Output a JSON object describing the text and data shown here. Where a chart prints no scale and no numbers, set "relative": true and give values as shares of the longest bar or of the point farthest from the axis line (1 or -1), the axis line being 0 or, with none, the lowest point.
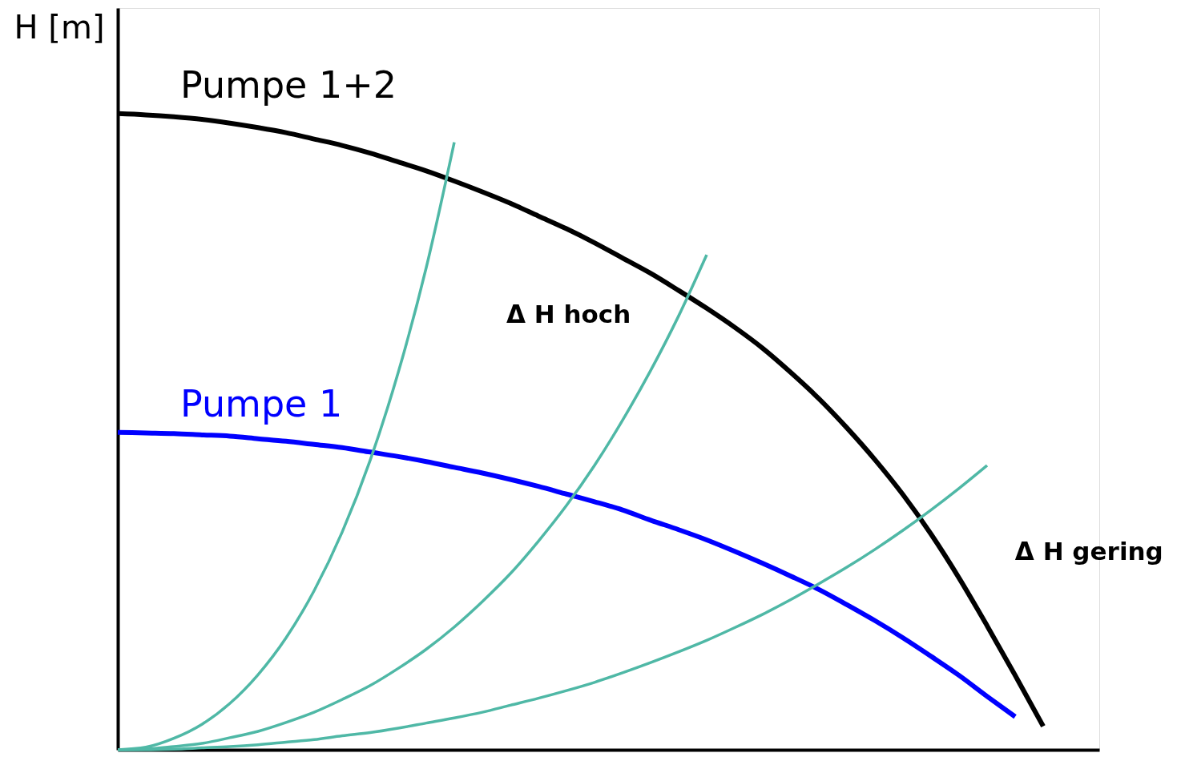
{
  "chart_data": {
    "type": "line",
    "relative": true,
    "ylabel": "H [m]",
    "categories": [
      null,
      null,
      null,
      null,
      null,
      null,
      null,
      null,
      null,
      null,
      null,
      null,
      null,
      null,
      null,
      null,
      null,
      null,
      null,
      null,
      null,
      null,
      null,
      null,
      null,
      null,
      null,
      null,
      null,
      null,
      null,
      null,
      null,
      null,
      null,
      null
    ],
    "series": [
      {
        "name": "Pumpe 1+2",
        "color": "#000000",
        "values": [
          1.0,
          0.998,
          0.995,
          0.991,
          0.985,
          0.978,
          0.97,
          0.96,
          0.95,
          0.938,
          0.924,
          0.91,
          0.894,
          0.877,
          0.859,
          0.839,
          0.819,
          0.797,
          0.773,
          0.749,
          0.722,
          0.694,
          0.664,
          0.631,
          0.593,
          0.552,
          0.506,
          0.456,
          0.401,
          0.339,
          0.27,
          0.195,
          0.117,
          0.037,
          null,
          null
        ]
      },
      {
        "name": "Pumpe 1",
        "color": "#0000ff",
        "values": [
          0.499,
          0.498,
          0.497,
          0.495,
          0.493,
          0.489,
          0.485,
          0.48,
          0.475,
          0.468,
          0.461,
          0.453,
          0.444,
          0.435,
          0.425,
          0.414,
          0.402,
          0.39,
          0.377,
          0.361,
          0.346,
          0.33,
          0.312,
          0.293,
          0.273,
          0.252,
          0.228,
          0.203,
          0.176,
          0.147,
          0.117,
          0.084,
          0.052,
          null,
          null,
          null
        ]
      },
      {
        "color": "#4fb8a6",
        "values": [
          0,
          0.004,
          0.018,
          0.04,
          0.073,
          0.118,
          0.176,
          0.25,
          0.342,
          0.455,
          0.593,
          0.758,
          0.955,
          null,
          null,
          null,
          null,
          null,
          null,
          null,
          null,
          null,
          null,
          null,
          null,
          null,
          null,
          null,
          null,
          null,
          null,
          null,
          null,
          null,
          null,
          null
        ]
      },
      {
        "color": "#4fb8a6",
        "values": [
          0,
          0.001,
          0.005,
          0.01,
          0.019,
          0.029,
          0.043,
          0.059,
          0.079,
          0.101,
          0.128,
          0.158,
          0.193,
          0.233,
          0.277,
          0.328,
          0.384,
          0.447,
          0.518,
          0.596,
          0.682,
          0.778,
          null,
          null,
          null,
          null,
          null,
          null,
          null,
          null,
          null,
          null,
          null,
          null,
          null,
          null
        ]
      },
      {
        "color": "#4fb8a6",
        "values": [
          0,
          0.0,
          0.001,
          0.003,
          0.005,
          0.008,
          0.012,
          0.016,
          0.022,
          0.027,
          0.034,
          0.042,
          0.05,
          0.059,
          0.07,
          0.081,
          0.093,
          0.106,
          0.121,
          0.137,
          0.154,
          0.172,
          0.192,
          0.213,
          0.236,
          0.261,
          0.287,
          0.315,
          0.345,
          0.377,
          0.411,
          0.447,
          null,
          null,
          null,
          null
        ]
      }
    ],
    "annotations": [
      "Δ H hoch",
      "Δ H gering"
    ]
  }
}
